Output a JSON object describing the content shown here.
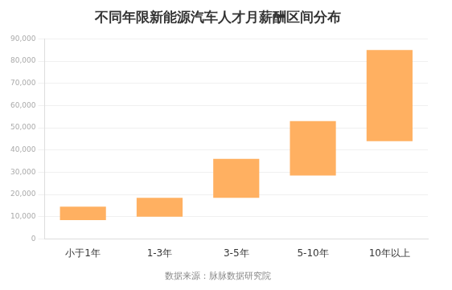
{
  "chart_data": {
    "type": "floating_bar",
    "title": "不同年限新能源汽车人才月薪酬区间分布",
    "annotation": "数据来源：脉脉数据研究院",
    "categories": [
      "小于1年",
      "1-3年",
      "3-5年",
      "5-10年",
      "10年以上"
    ],
    "values": [
      [
        8500,
        14500
      ],
      [
        10000,
        18500
      ],
      [
        18500,
        36000
      ],
      [
        28500,
        53000
      ],
      [
        44000,
        85000
      ]
    ],
    "color": "#ffb061",
    "ylim": [
      0,
      90000
    ],
    "yticks": [
      0,
      {
        "value": 10000,
        "label": "10,000"
      },
      {
        "value": 20000,
        "label": "20,000"
      },
      {
        "value": 30000,
        "label": "30,000"
      },
      {
        "value": 40000,
        "label": "40,000"
      },
      {
        "value": 50000,
        "label": "50,000"
      },
      {
        "value": 60000,
        "label": "60,000"
      },
      {
        "value": 70000,
        "label": "70,000"
      },
      {
        "value": 80000,
        "label": "80,000"
      },
      {
        "value": 90000,
        "label": "90,000"
      }
    ],
    "grid": true
  }
}
